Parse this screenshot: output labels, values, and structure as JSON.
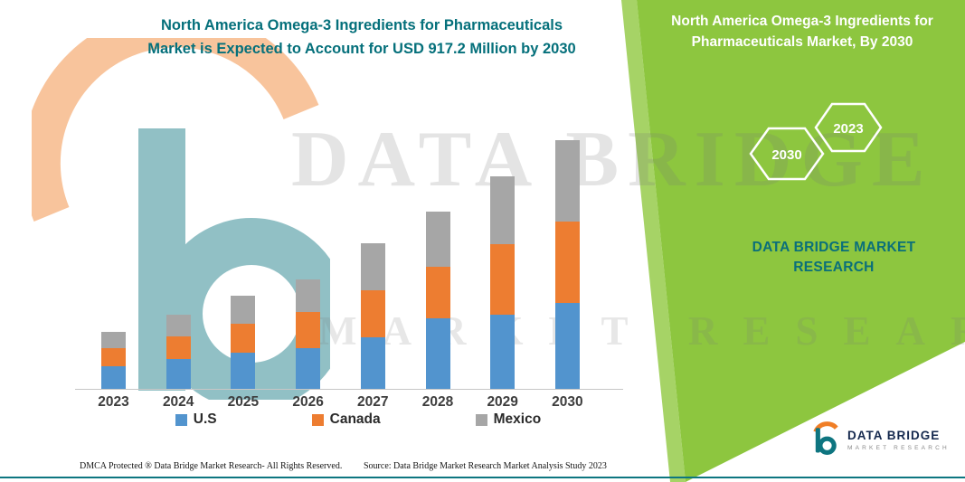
{
  "header": {
    "title_line1": "North America Omega-3 Ingredients for Pharmaceuticals",
    "title_line2": "Market is Expected to Account for USD 917.2 Million by 2030"
  },
  "side_panel": {
    "title": "North America Omega-3 Ingredients for Pharmaceuticals Market, By 2030",
    "hexagon_back_year": "2030",
    "hexagon_front_year": "2023",
    "brand_line1": "DATA BRIDGE MARKET",
    "brand_line2": "RESEARCH",
    "panel_color": "#8DC63F",
    "stripe_color": "#A6D366",
    "brand_text_color": "#0A6F7A"
  },
  "watermark": {
    "line1": "DATA BRIDGE",
    "line2": "MARKET RESEARCH"
  },
  "footer": {
    "dmca": "DMCA Protected ® Data Bridge Market Research-  All Rights Reserved.",
    "source": "Source: Data Bridge Market Research  Market Analysis Study 2023"
  },
  "logo": {
    "name": "DATA BRIDGE",
    "tagline": "MARKET RESEARCH"
  },
  "chart_data": {
    "type": "bar",
    "stacked": true,
    "title": "North America Omega-3 Ingredients for Pharmaceuticals Market is Expected to Account for USD 917.2 Million by 2030",
    "units": "USD Million (values estimated from bar heights; 2030 total labeled as 917.2)",
    "categories": [
      "2023",
      "2024",
      "2025",
      "2026",
      "2027",
      "2028",
      "2029",
      "2030"
    ],
    "series": [
      {
        "name": "U.S",
        "color": "#5294CE",
        "values": [
          83,
          110,
          133,
          150,
          190,
          260,
          273,
          317.2
        ]
      },
      {
        "name": "Canada",
        "color": "#ED7D31",
        "values": [
          67,
          83,
          107,
          133,
          173,
          190,
          260,
          300
        ]
      },
      {
        "name": "Mexico",
        "color": "#A6A6A6",
        "values": [
          60,
          80,
          103,
          120,
          173,
          203,
          250,
          300
        ]
      }
    ],
    "totals": [
      210,
      273,
      343,
      403,
      536,
      653,
      783,
      917.2
    ],
    "xlabel": "",
    "ylabel": "",
    "ylim": [
      0,
      1000
    ],
    "grid": false,
    "legend_position": "bottom",
    "y_axis_visible": false
  }
}
